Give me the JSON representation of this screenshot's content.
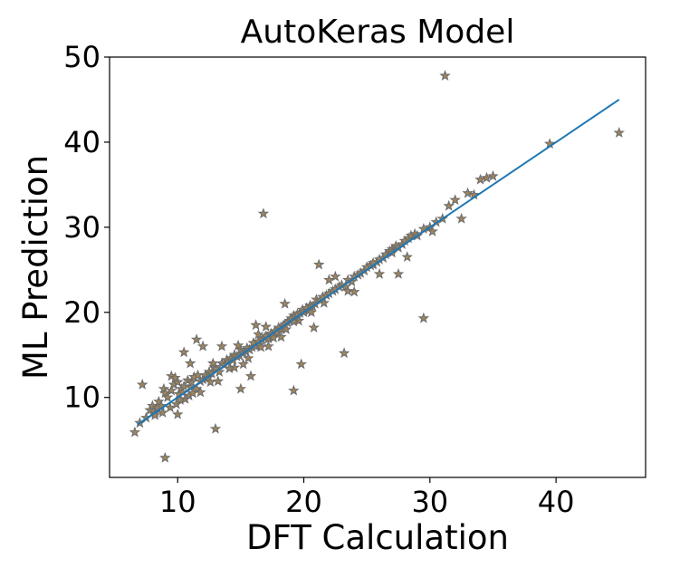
{
  "chart_data": {
    "type": "scatter",
    "title": "AutoKeras Model",
    "xlabel": "DFT Calculation",
    "ylabel": "ML Prediction",
    "xlim": [
      4.6,
      47.1
    ],
    "ylim": [
      0.6,
      50
    ],
    "xticks": [
      10,
      20,
      30,
      40
    ],
    "yticks": [
      10,
      20,
      30,
      40,
      50
    ],
    "grid": false,
    "marker": "star",
    "marker_fill": "#a0855a",
    "marker_edge": "#6e6e6e",
    "line_color": "#1f77b4",
    "fit_line": {
      "x": [
        6.8,
        45.0
      ],
      "y": [
        6.8,
        45.0
      ]
    },
    "points": {
      "x": [
        6.6,
        7.0,
        7.5,
        7.8,
        8.0,
        8.2,
        8.4,
        8.5,
        8.7,
        8.9,
        9.0,
        9.2,
        9.4,
        9.5,
        9.7,
        9.9,
        10.0,
        10.1,
        10.3,
        10.4,
        10.5,
        10.6,
        10.8,
        10.9,
        11.0,
        11.1,
        11.3,
        11.5,
        11.6,
        11.8,
        12.0,
        12.2,
        12.4,
        12.5,
        12.7,
        12.9,
        13.0,
        13.3,
        13.5,
        13.7,
        13.9,
        14.0,
        14.2,
        14.4,
        14.5,
        14.7,
        14.9,
        15.0,
        15.2,
        15.4,
        15.5,
        15.7,
        15.9,
        16.0,
        16.2,
        16.4,
        16.5,
        16.7,
        16.9,
        17.0,
        17.2,
        17.4,
        17.5,
        17.7,
        17.9,
        18.0,
        18.2,
        18.4,
        18.5,
        18.7,
        18.9,
        19.0,
        19.2,
        19.4,
        19.5,
        19.7,
        19.9,
        20.0,
        20.2,
        20.4,
        20.5,
        20.7,
        20.9,
        21.0,
        21.3,
        21.5,
        21.8,
        22.0,
        22.3,
        22.5,
        22.8,
        23.0,
        23.3,
        23.5,
        23.8,
        24.0,
        24.3,
        24.5,
        24.8,
        25.0,
        25.3,
        25.5,
        25.8,
        26.0,
        26.3,
        26.5,
        26.8,
        27.0,
        27.3,
        27.5,
        27.8,
        28.0,
        28.3,
        28.5,
        28.8,
        29.0,
        29.5,
        30.0,
        30.5,
        31.0,
        31.5,
        32.0,
        33.0,
        33.5,
        34.0,
        35.0,
        39.5,
        45.0,
        7.2,
        9.0,
        11.5,
        13.0,
        15.0,
        16.8,
        17.0,
        19.2,
        19.8,
        21.2,
        22.0,
        23.2,
        23.5,
        25.5,
        27.0,
        29.5,
        30.2,
        12.8,
        14.5,
        10.5,
        11.0,
        12.0,
        10.0,
        9.5,
        13.5,
        15.8,
        16.2,
        18.5,
        20.8,
        22.5,
        24.0,
        26.0,
        28.2,
        31.2,
        32.5,
        34.5,
        27.5,
        8.8,
        10.2,
        11.8,
        12.6,
        14.1,
        15.6,
        16.6,
        17.6,
        18.6,
        19.6,
        20.6,
        21.6,
        17.2,
        18.2,
        19.2,
        15.2,
        16.4,
        14.8,
        13.2,
        11.2,
        9.8,
        8.2
      ],
      "y": [
        5.9,
        7.0,
        7.6,
        8.5,
        9.0,
        8.2,
        8.8,
        9.5,
        9.0,
        11.0,
        10.5,
        10.0,
        8.8,
        10.8,
        11.5,
        9.2,
        11.8,
        10.4,
        11.0,
        10.6,
        11.3,
        9.8,
        12.0,
        10.2,
        11.2,
        11.8,
        12.4,
        11.0,
        12.6,
        11.9,
        12.1,
        12.6,
        12.3,
        13.0,
        12.8,
        13.6,
        13.4,
        13.0,
        14.0,
        13.8,
        14.4,
        14.2,
        14.6,
        14.4,
        15.0,
        14.8,
        14.9,
        15.6,
        15.2,
        15.4,
        15.8,
        15.6,
        15.9,
        16.4,
        16.0,
        16.6,
        16.2,
        16.8,
        17.0,
        17.2,
        16.9,
        17.5,
        17.3,
        17.8,
        17.6,
        18.2,
        18.0,
        18.4,
        18.6,
        18.8,
        19.0,
        19.3,
        19.6,
        19.5,
        19.8,
        19.9,
        20.3,
        20.0,
        20.5,
        20.2,
        20.8,
        20.7,
        21.0,
        21.5,
        21.4,
        21.8,
        22.0,
        22.2,
        22.5,
        22.7,
        23.0,
        23.2,
        23.0,
        23.8,
        23.6,
        24.2,
        24.4,
        24.6,
        24.9,
        25.3,
        25.5,
        25.6,
        25.9,
        26.2,
        26.4,
        26.8,
        27.2,
        27.4,
        27.8,
        27.6,
        28.0,
        28.4,
        28.7,
        29.0,
        29.2,
        29.0,
        29.8,
        30.0,
        30.6,
        31.0,
        32.5,
        33.2,
        34.0,
        33.8,
        35.6,
        36.0,
        39.8,
        41.1,
        11.5,
        2.9,
        16.8,
        6.3,
        11.0,
        31.6,
        18.3,
        10.8,
        13.9,
        25.6,
        23.8,
        15.2,
        22.5,
        25.8,
        27.0,
        19.3,
        29.5,
        14.0,
        13.5,
        15.3,
        14.0,
        16.0,
        8.0,
        12.5,
        16.0,
        12.5,
        18.5,
        21.0,
        18.2,
        24.2,
        22.4,
        24.5,
        26.5,
        47.8,
        31.0,
        35.8,
        24.5,
        8.2,
        9.7,
        10.6,
        11.8,
        13.4,
        14.6,
        15.9,
        17.0,
        18.0,
        19.0,
        20.0,
        21.1,
        16.0,
        17.1,
        18.9,
        13.9,
        17.4,
        16.1,
        11.9,
        10.5,
        12.3,
        7.9
      ]
    }
  }
}
